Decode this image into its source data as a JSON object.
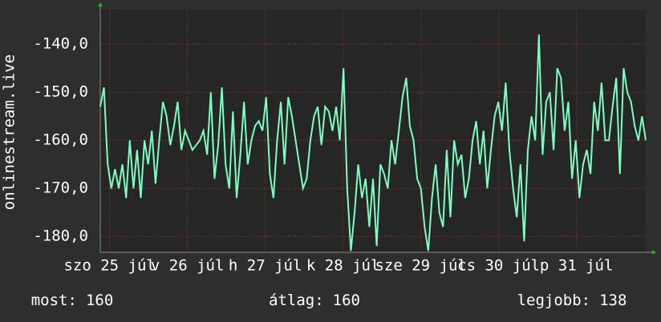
{
  "chart_data": {
    "type": "line",
    "y_label": "onlinestream.live",
    "color": "#7fffbf",
    "values": [
      -153,
      -149,
      -165,
      -170,
      -166,
      -170,
      -165,
      -172,
      -160,
      -170,
      -162,
      -172,
      -160,
      -165,
      -158,
      -169,
      -160,
      -152,
      -155,
      -161,
      -157,
      -152,
      -162,
      -158,
      -160,
      -162,
      -161,
      -160,
      -158,
      -163,
      -150,
      -168,
      -161,
      -149,
      -165,
      -170,
      -154,
      -172,
      -163,
      -152,
      -165,
      -160,
      -157,
      -156,
      -158,
      -151,
      -167,
      -172,
      -160,
      -152,
      -165,
      -151,
      -155,
      -160,
      -165,
      -170,
      -168,
      -160,
      -155,
      -153,
      -161,
      -153,
      -154,
      -158,
      -153,
      -160,
      -145,
      -170,
      -183,
      -175,
      -165,
      -172,
      -168,
      -178,
      -168,
      -182,
      -165,
      -167,
      -170,
      -160,
      -165,
      -158,
      -151,
      -147,
      -157,
      -160,
      -168,
      -170,
      -178,
      -183,
      -172,
      -165,
      -175,
      -178,
      -162,
      -176,
      -160,
      -165,
      -163,
      -172,
      -168,
      -160,
      -156,
      -165,
      -158,
      -170,
      -162,
      -155,
      -152,
      -158,
      -148,
      -162,
      -170,
      -176,
      -165,
      -181,
      -162,
      -155,
      -160,
      -138,
      -163,
      -152,
      -150,
      -162,
      -145,
      -147,
      -158,
      -152,
      -168,
      -160,
      -172,
      -165,
      -162,
      -167,
      -152,
      -158,
      -148,
      -160,
      -160,
      -153,
      -147,
      -167,
      -145,
      -150,
      -152,
      -157,
      -160,
      -155,
      -160
    ],
    "ylim": [
      -183.3,
      -132.8
    ],
    "yticks": [
      {
        "value": -140,
        "label": "-140,0"
      },
      {
        "value": -150,
        "label": "-150,0"
      },
      {
        "value": -160,
        "label": "-160,0"
      },
      {
        "value": -170,
        "label": "-170,0"
      },
      {
        "value": -180,
        "label": "-180,0"
      }
    ],
    "xlim": [
      25.38,
      32.39
    ],
    "xticks": [
      {
        "value": 25.5,
        "label": "szo 25 júl"
      },
      {
        "value": 26.5,
        "label": "v 26 júl"
      },
      {
        "value": 27.5,
        "label": "h 27 júl"
      },
      {
        "value": 28.5,
        "label": "k 28 júl"
      },
      {
        "value": 29.5,
        "label": "sze 29 júl"
      },
      {
        "value": 30.5,
        "label": "cs 30 júl"
      },
      {
        "value": 31.5,
        "label": "p 31 júl"
      }
    ],
    "grid": true,
    "footer": [
      {
        "label": "most:",
        "value": 160
      },
      {
        "label": "átlag:",
        "value": 160
      },
      {
        "label": "legjobb:",
        "value": 138
      }
    ]
  }
}
